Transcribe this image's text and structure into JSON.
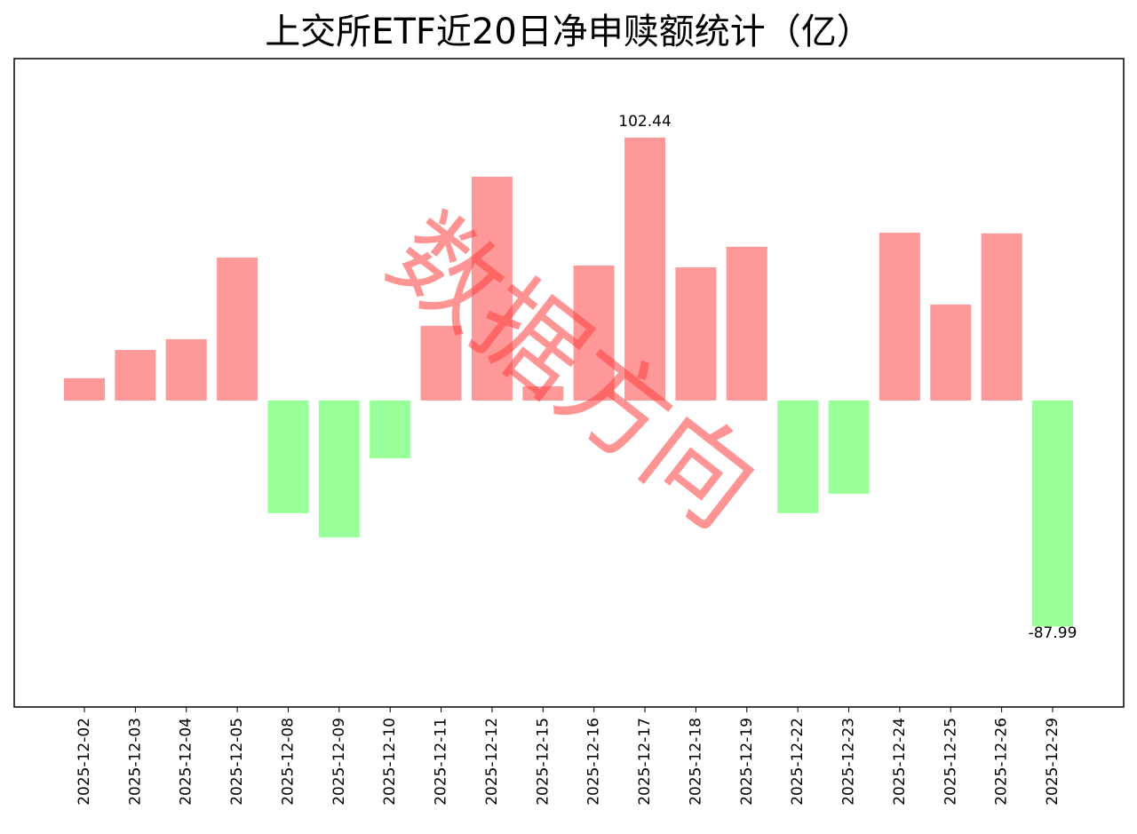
{
  "chart_data": {
    "type": "bar",
    "title": "上交所ETF近20日净申赎额统计（亿）",
    "watermark": "数据方向",
    "categories": [
      "2025-12-02",
      "2025-12-03",
      "2025-12-04",
      "2025-12-05",
      "2025-12-08",
      "2025-12-09",
      "2025-12-10",
      "2025-12-11",
      "2025-12-12",
      "2025-12-15",
      "2025-12-16",
      "2025-12-17",
      "2025-12-18",
      "2025-12-19",
      "2025-12-22",
      "2025-12-23",
      "2025-12-24",
      "2025-12-25",
      "2025-12-26",
      "2025-12-29"
    ],
    "values": [
      8.7,
      19.7,
      23.9,
      55.7,
      -43.9,
      -53.3,
      -22.5,
      29.1,
      87.2,
      5.5,
      52.6,
      102.44,
      51.9,
      59.9,
      -43.9,
      -36.3,
      65.4,
      37.4,
      65.1,
      -87.99
    ],
    "positive_color": "#ff9999",
    "negative_color": "#99ff99",
    "ylim": [
      -119.4,
      133.2
    ]
  }
}
